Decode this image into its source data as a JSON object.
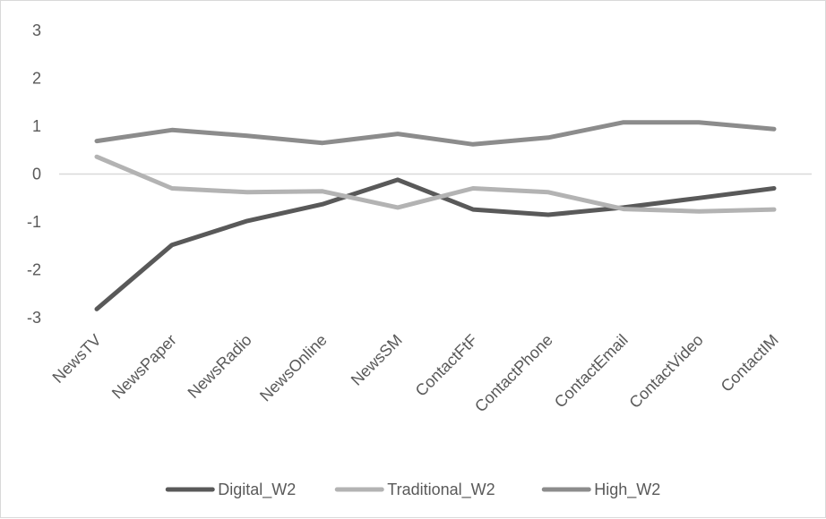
{
  "chart_data": {
    "type": "line",
    "categories": [
      "NewsTV",
      "NewsPaper",
      "NewsRadio",
      "NewsOnline",
      "NewsSM",
      "ContactFtF",
      "ContactPhone",
      "ContactEmail",
      "ContactVideo",
      "ContactIM"
    ],
    "series": [
      {
        "name": "Digital_W2",
        "color": "#595959",
        "values": [
          -2.82,
          -1.48,
          -0.98,
          -0.63,
          -0.12,
          -0.74,
          -0.85,
          -0.7,
          -0.5,
          -0.3
        ]
      },
      {
        "name": "Traditional_W2",
        "color": "#b3b3b3",
        "values": [
          0.36,
          -0.3,
          -0.38,
          -0.36,
          -0.7,
          -0.3,
          -0.38,
          -0.73,
          -0.78,
          -0.74
        ]
      },
      {
        "name": "High_W2",
        "color": "#8c8c8c",
        "values": [
          0.69,
          0.92,
          0.8,
          0.65,
          0.84,
          0.62,
          0.76,
          1.08,
          1.08,
          0.94
        ]
      }
    ],
    "yticks": [
      "3",
      "2",
      "1",
      "0",
      "-1",
      "-2",
      "-3"
    ],
    "ylim": [
      -3,
      3
    ],
    "grid": false,
    "zero_line": true,
    "legend_position": "bottom",
    "title": "",
    "xlabel": "",
    "ylabel": ""
  }
}
